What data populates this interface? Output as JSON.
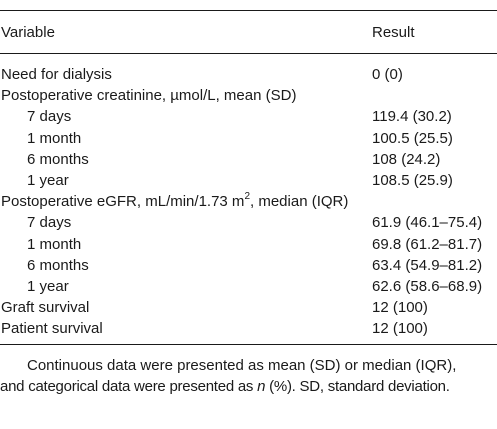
{
  "table": {
    "header": {
      "variable": "Variable",
      "result": "Result"
    },
    "rows": [
      {
        "label": "Need for dialysis",
        "value": "0 (0)",
        "indent": false
      },
      {
        "label": "Postoperative creatinine, µmol/L, mean (SD)",
        "value": "",
        "indent": false
      },
      {
        "label": "7 days",
        "value": "119.4 (30.2)",
        "indent": true
      },
      {
        "label": "1 month",
        "value": "100.5 (25.5)",
        "indent": true
      },
      {
        "label": "6 months",
        "value": "108 (24.2)",
        "indent": true
      },
      {
        "label": "1 year",
        "value": "108.5 (25.9)",
        "indent": true
      },
      {
        "label_pre": "Postoperative eGFR, mL/min/1.73 m",
        "label_sup": "2",
        "label_post": ", median (IQR)",
        "value": "",
        "indent": false
      },
      {
        "label": "7 days",
        "value": "61.9 (46.1–75.4)",
        "indent": true
      },
      {
        "label": "1 month",
        "value": "69.8 (61.2–81.7)",
        "indent": true
      },
      {
        "label": "6 months",
        "value": "63.4 (54.9–81.2)",
        "indent": true
      },
      {
        "label": "1 year",
        "value": "62.6 (58.6–68.9)",
        "indent": true
      },
      {
        "label": "Graft survival",
        "value": "12 (100)",
        "indent": false
      },
      {
        "label": "Patient survival",
        "value": "12 (100)",
        "indent": false
      }
    ]
  },
  "footnote": {
    "line1": "Continuous data were presented as mean (SD) or median (IQR),",
    "line2_pre": "and categorical data were presented as ",
    "line2_italic": "n",
    "line2_post": " (%). SD, standard deviation."
  }
}
